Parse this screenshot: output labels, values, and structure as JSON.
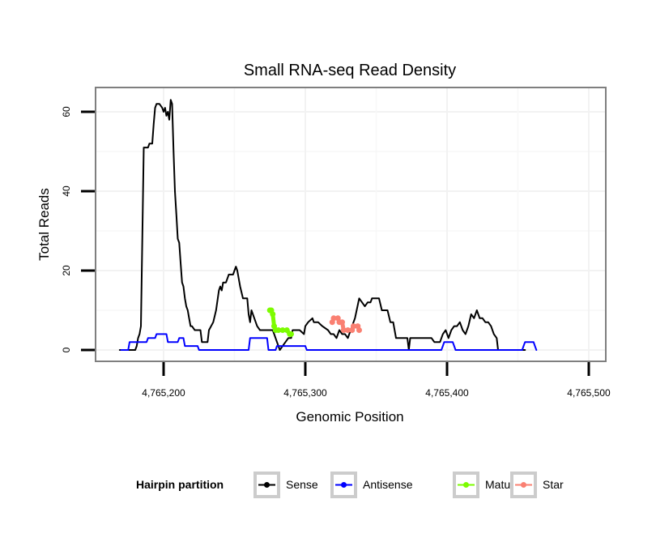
{
  "chart_data": {
    "type": "line",
    "title": "Small RNA-seq Read Density",
    "xlabel": "Genomic Position",
    "ylabel": "Total Reads",
    "xlim": [
      4765150,
      4765505
    ],
    "ylim": [
      -3,
      66
    ],
    "grid": true,
    "x_ticks": [
      4765200,
      4765300,
      4765400,
      4765500
    ],
    "x_tick_labels": [
      "4,765,200",
      "4,765,300",
      "4,765,400",
      "4,765,500"
    ],
    "y_ticks": [
      0,
      20,
      40,
      60
    ],
    "y_tick_labels": [
      "0",
      "20",
      "40",
      "60"
    ],
    "legend": {
      "title": "Hairpin partition",
      "placement": "bottom",
      "entries": [
        {
          "label": "Sense",
          "color": "#000000"
        },
        {
          "label": "Antisense",
          "color": "#0000ff"
        },
        {
          "label": "Mature",
          "color": "#7cfc00"
        },
        {
          "label": "Star",
          "color": "#fa8072"
        }
      ]
    },
    "series": [
      {
        "name": "Sense",
        "color": "#000000",
        "points": [
          [
            4765169,
            0
          ],
          [
            4765180,
            0
          ],
          [
            4765181,
            1
          ],
          [
            4765182,
            3
          ],
          [
            4765183,
            4
          ],
          [
            4765184,
            6
          ],
          [
            4765185,
            29
          ],
          [
            4765186,
            51
          ],
          [
            4765189,
            51
          ],
          [
            4765190,
            52
          ],
          [
            4765192,
            52
          ],
          [
            4765193,
            57
          ],
          [
            4765194,
            61
          ],
          [
            4765195,
            62
          ],
          [
            4765197,
            62
          ],
          [
            4765199,
            61
          ],
          [
            4765200,
            60
          ],
          [
            4765201,
            61
          ],
          [
            4765202,
            59
          ],
          [
            4765203,
            60
          ],
          [
            4765204,
            58
          ],
          [
            4765205,
            63
          ],
          [
            4765206,
            62
          ],
          [
            4765207,
            50
          ],
          [
            4765208,
            40
          ],
          [
            4765209,
            34
          ],
          [
            4765210,
            28
          ],
          [
            4765211,
            27
          ],
          [
            4765212,
            22
          ],
          [
            4765213,
            17
          ],
          [
            4765214,
            16
          ],
          [
            4765215,
            13
          ],
          [
            4765216,
            11
          ],
          [
            4765217,
            10
          ],
          [
            4765218,
            8
          ],
          [
            4765219,
            6
          ],
          [
            4765220,
            6
          ],
          [
            4765222,
            5
          ],
          [
            4765226,
            5
          ],
          [
            4765227,
            2
          ],
          [
            4765231,
            2
          ],
          [
            4765232,
            5
          ],
          [
            4765235,
            7
          ],
          [
            4765237,
            10
          ],
          [
            4765239,
            15
          ],
          [
            4765240,
            16
          ],
          [
            4765241,
            15
          ],
          [
            4765242,
            17
          ],
          [
            4765244,
            17
          ],
          [
            4765246,
            19
          ],
          [
            4765249,
            19
          ],
          [
            4765250,
            20
          ],
          [
            4765251,
            21
          ],
          [
            4765252,
            20
          ],
          [
            4765254,
            16
          ],
          [
            4765256,
            13
          ],
          [
            4765259,
            13
          ],
          [
            4765260,
            9
          ],
          [
            4765261,
            7
          ],
          [
            4765262,
            10
          ],
          [
            4765264,
            8
          ],
          [
            4765266,
            6
          ],
          [
            4765268,
            5
          ],
          [
            4765277,
            5
          ],
          [
            4765280,
            2
          ],
          [
            4765282,
            0
          ],
          [
            4765284,
            1
          ],
          [
            4765286,
            2
          ],
          [
            4765288,
            3
          ],
          [
            4765290,
            3
          ],
          [
            4765291,
            5
          ],
          [
            4765294,
            5
          ],
          [
            4765296,
            5
          ],
          [
            4765299,
            4
          ],
          [
            4765300,
            6
          ],
          [
            4765302,
            7
          ],
          [
            4765305,
            8
          ],
          [
            4765306,
            7
          ],
          [
            4765309,
            7
          ],
          [
            4765312,
            6
          ],
          [
            4765316,
            5
          ],
          [
            4765318,
            4
          ],
          [
            4765320,
            4
          ],
          [
            4765322,
            3
          ],
          [
            4765324,
            5
          ],
          [
            4765326,
            4
          ],
          [
            4765328,
            4
          ],
          [
            4765330,
            3
          ],
          [
            4765332,
            5
          ],
          [
            4765334,
            7
          ],
          [
            4765335,
            8
          ],
          [
            4765338,
            13
          ],
          [
            4765340,
            12
          ],
          [
            4765342,
            11
          ],
          [
            4765344,
            12
          ],
          [
            4765346,
            12
          ],
          [
            4765347,
            13
          ],
          [
            4765352,
            13
          ],
          [
            4765354,
            10
          ],
          [
            4765358,
            10
          ],
          [
            4765360,
            7
          ],
          [
            4765362,
            7
          ],
          [
            4765364,
            3
          ],
          [
            4765372,
            3
          ],
          [
            4765373,
            0
          ],
          [
            4765374,
            3
          ],
          [
            4765389,
            3
          ],
          [
            4765391,
            2
          ],
          [
            4765395,
            2
          ],
          [
            4765397,
            4
          ],
          [
            4765399,
            5
          ],
          [
            4765401,
            3
          ],
          [
            4765403,
            5
          ],
          [
            4765405,
            6
          ],
          [
            4765407,
            6
          ],
          [
            4765409,
            7
          ],
          [
            4765411,
            5
          ],
          [
            4765413,
            4
          ],
          [
            4765415,
            6
          ],
          [
            4765417,
            9
          ],
          [
            4765419,
            8
          ],
          [
            4765421,
            10
          ],
          [
            4765423,
            8
          ],
          [
            4765425,
            8
          ],
          [
            4765427,
            7
          ],
          [
            4765429,
            7
          ],
          [
            4765431,
            6
          ],
          [
            4765433,
            4
          ],
          [
            4765435,
            3
          ],
          [
            4765436,
            0
          ],
          [
            4765446,
            0
          ],
          [
            4765455,
            0
          ]
        ]
      },
      {
        "name": "Antisense",
        "color": "#0000ff",
        "points": [
          [
            4765170,
            0
          ],
          [
            4765175,
            0
          ],
          [
            4765176,
            2
          ],
          [
            4765188,
            2
          ],
          [
            4765189,
            3
          ],
          [
            4765194,
            3
          ],
          [
            4765195,
            4
          ],
          [
            4765202,
            4
          ],
          [
            4765203,
            2
          ],
          [
            4765210,
            2
          ],
          [
            4765211,
            3
          ],
          [
            4765214,
            3
          ],
          [
            4765215,
            1
          ],
          [
            4765224,
            1
          ],
          [
            4765225,
            0
          ],
          [
            4765260,
            0
          ],
          [
            4765261,
            3
          ],
          [
            4765273,
            3
          ],
          [
            4765274,
            0
          ],
          [
            4765279,
            0
          ],
          [
            4765280,
            1
          ],
          [
            4765300,
            1
          ],
          [
            4765301,
            0
          ],
          [
            4765396,
            0
          ],
          [
            4765397,
            1
          ],
          [
            4765398,
            2
          ],
          [
            4765404,
            2
          ],
          [
            4765405,
            1
          ],
          [
            4765406,
            0
          ],
          [
            4765453,
            0
          ],
          [
            4765454,
            1
          ],
          [
            4765455,
            2
          ],
          [
            4765461,
            2
          ],
          [
            4765462,
            1
          ],
          [
            4765463,
            0
          ]
        ]
      },
      {
        "name": "Mature",
        "color": "#7cfc00",
        "points": [
          [
            4765275,
            10
          ],
          [
            4765276,
            10
          ],
          [
            4765277,
            9
          ],
          [
            4765278,
            6
          ],
          [
            4765279,
            5
          ],
          [
            4765281,
            5
          ],
          [
            4765284,
            5
          ],
          [
            4765287,
            5
          ],
          [
            4765289,
            4
          ],
          [
            4765290,
            4
          ]
        ]
      },
      {
        "name": "Star",
        "color": "#fa8072",
        "points": [
          [
            4765319,
            7
          ],
          [
            4765320,
            8
          ],
          [
            4765323,
            8
          ],
          [
            4765324,
            7
          ],
          [
            4765326,
            7
          ],
          [
            4765327,
            5
          ],
          [
            4765330,
            5
          ],
          [
            4765333,
            5
          ],
          [
            4765334,
            6
          ],
          [
            4765337,
            6
          ],
          [
            4765338,
            5
          ]
        ]
      }
    ]
  }
}
